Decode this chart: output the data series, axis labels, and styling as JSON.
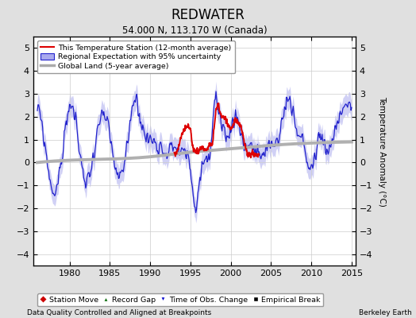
{
  "title": "REDWATER",
  "subtitle": "54.000 N, 113.170 W (Canada)",
  "ylabel": "Temperature Anomaly (°C)",
  "xlabel_left": "Data Quality Controlled and Aligned at Breakpoints",
  "xlabel_right": "Berkeley Earth",
  "ylim": [
    -4.5,
    5.5
  ],
  "xlim": [
    1975.5,
    2015.5
  ],
  "xticks": [
    1980,
    1985,
    1990,
    1995,
    2000,
    2005,
    2010,
    2015
  ],
  "yticks": [
    -4,
    -3,
    -2,
    -1,
    0,
    1,
    2,
    3,
    4,
    5
  ],
  "bg_color": "#e0e0e0",
  "plot_bg_color": "#ffffff",
  "legend_items": [
    {
      "label": "This Temperature Station (12-month average)",
      "color": "#dd0000",
      "lw": 1.5
    },
    {
      "label": "Regional Expectation with 95% uncertainty",
      "color": "#2222cc",
      "lw": 1.0
    },
    {
      "label": "Global Land (5-year average)",
      "color": "#aaaaaa",
      "lw": 2.5
    }
  ],
  "marker_legend": [
    {
      "label": "Station Move",
      "marker": "D",
      "color": "#cc0000"
    },
    {
      "label": "Record Gap",
      "marker": "^",
      "color": "#006600"
    },
    {
      "label": "Time of Obs. Change",
      "marker": "v",
      "color": "#0000cc"
    },
    {
      "label": "Empirical Break",
      "marker": "s",
      "color": "#000000"
    }
  ],
  "station_start": 1993.0,
  "station_end": 2003.5
}
